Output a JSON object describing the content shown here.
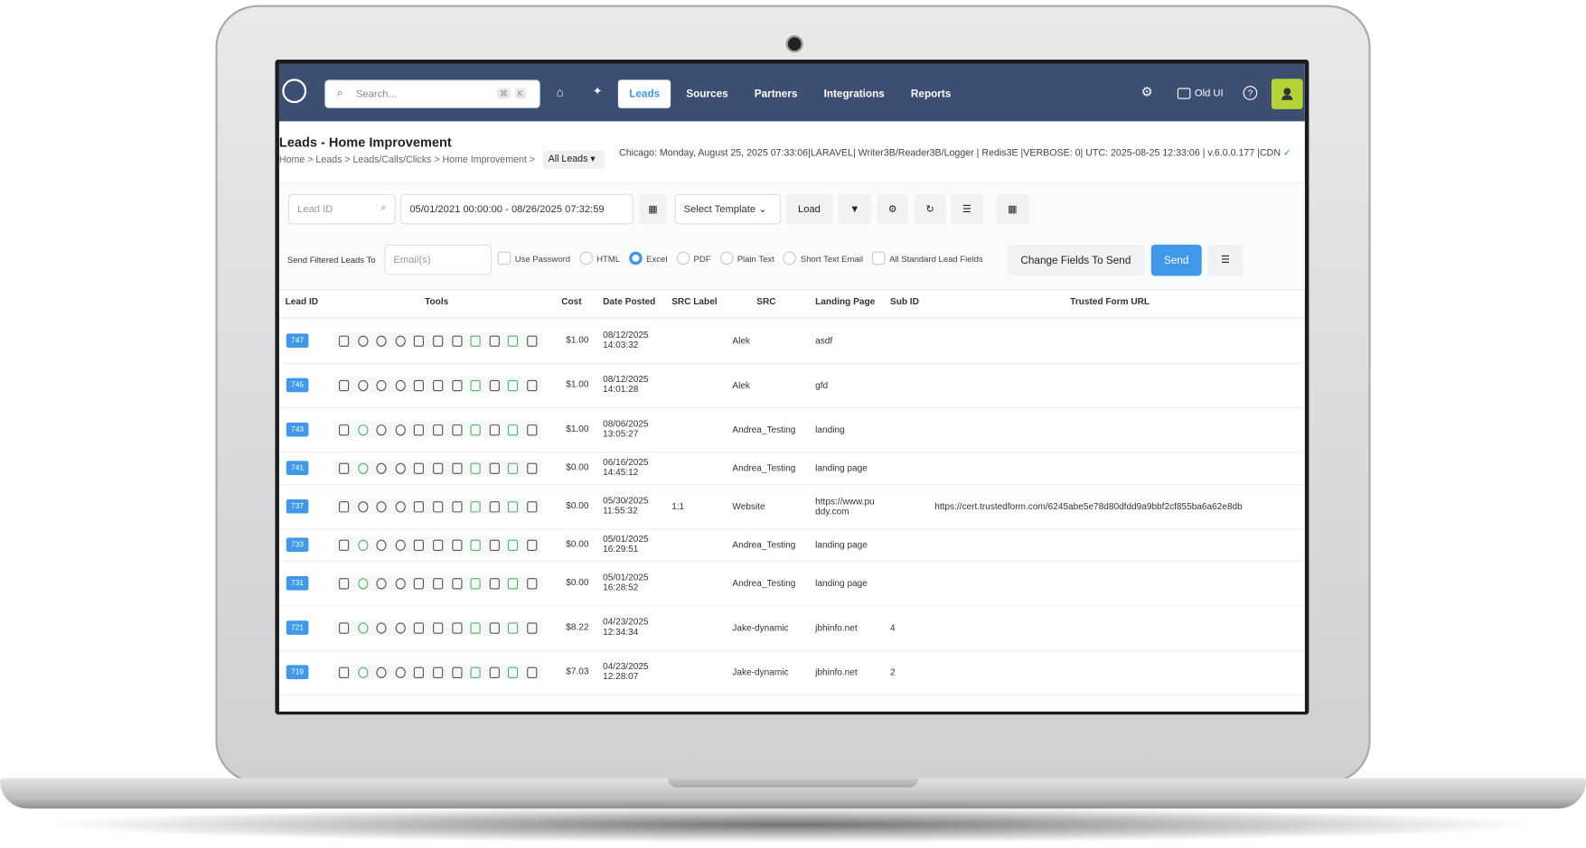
{
  "nav": {
    "search_placeholder": "Search...",
    "shortcut_keys": [
      "⌘",
      "K"
    ],
    "items": [
      "Leads",
      "Sources",
      "Partners",
      "Integrations",
      "Reports"
    ],
    "active_item": 0,
    "old_ui": "Old UI"
  },
  "header": {
    "title": "Leads - Home Improvement",
    "breadcrumb": "Home > Leads > Leads/Calls/Clicks > Home Improvement >",
    "filter": "All Leads",
    "status": "Chicago: Monday, August 25, 2025 07:33:06|LARAVEL| Writer3B/Reader3B/Logger | Redis3E |VERBOSE: 0| UTC: 2025-08-25 12:33:06 | v.6.0.0.177 |CDN"
  },
  "toolbar": {
    "lead_id_placeholder": "Lead ID",
    "date_range": "05/01/2021 00:00:00 - 08/26/2025 07:32:59",
    "template": "Select Template",
    "load": "Load"
  },
  "send": {
    "label": "Send Filtered Leads To",
    "email_placeholder": "Email(s)",
    "use_password": "Use Password",
    "formats": [
      "HTML",
      "Excel",
      "PDF",
      "Plain Text",
      "Short Text Email"
    ],
    "selected_format": 1,
    "all_fields": "All Standard Lead Fields",
    "change_fields": "Change Fields To Send",
    "send": "Send"
  },
  "table": {
    "columns": [
      "Lead ID",
      "Tools",
      "Cost",
      "Date Posted",
      "SRC Label",
      "SRC",
      "Landing Page",
      "Sub ID",
      "Trusted Form URL"
    ],
    "rows": [
      {
        "id": "747",
        "cost": "$1.00",
        "date": "08/12/2025",
        "time": "14:03:32",
        "src": "Alek",
        "landing": "asdf"
      },
      {
        "id": "745",
        "cost": "$1.00",
        "date": "08/12/2025",
        "time": "14:01:28",
        "src": "Alek",
        "landing": "gfd"
      },
      {
        "id": "743",
        "cost": "$1.00",
        "date": "08/06/2025",
        "time": "13:05:27",
        "src": "Andrea_Testing",
        "landing": "landing"
      },
      {
        "id": "741",
        "cost": "$0.00",
        "date": "06/16/2025",
        "time": "14:45:12",
        "src": "Andrea_Testing",
        "landing": "landing page"
      },
      {
        "id": "737",
        "cost": "$0.00",
        "date": "05/30/2025",
        "time": "11:55:32",
        "src_label": "1:1",
        "src": "Website",
        "landing": "https://www.puddy.com",
        "trusted_url": "https://cert.trustedform.com/6245abe5e78d80dfdd9a9bbf2cf855ba6a62e8db"
      },
      {
        "id": "733",
        "cost": "$0.00",
        "date": "05/01/2025",
        "time": "16:29:51",
        "src": "Andrea_Testing",
        "landing": "landing page"
      },
      {
        "id": "731",
        "cost": "$0.00",
        "date": "05/01/2025",
        "time": "16:28:52",
        "src": "Andrea_Testing",
        "landing": "landing page"
      },
      {
        "id": "721",
        "cost": "$8.22",
        "date": "04/23/2025",
        "time": "12:34:34",
        "src": "Jake-dynamic",
        "landing": "jbhinfo.net",
        "sub_id": "4"
      },
      {
        "id": "719",
        "cost": "$7.03",
        "date": "04/23/2025",
        "time": "12:28:07",
        "src": "Jake-dynamic",
        "landing": "jbhinfo.net",
        "sub_id": "2"
      }
    ]
  }
}
